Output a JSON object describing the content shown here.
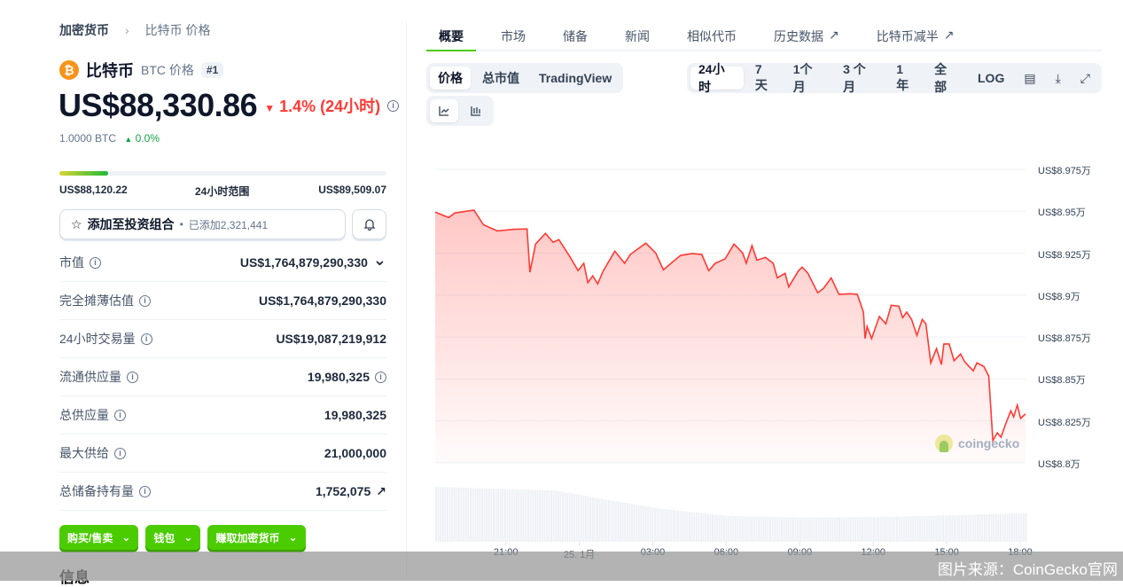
{
  "breadcrumb": {
    "root": "加密货币",
    "current": "比特币 价格"
  },
  "coin": {
    "name": "比特币",
    "symbol_label": "BTC 价格",
    "rank": "#1",
    "icon": "bitcoin-icon",
    "brand_color": "#f7931a"
  },
  "price": {
    "value": "US$88,330.86",
    "change": "1.4% (24小时)",
    "change_color": "#ff3a33",
    "btc_value": "1.0000 BTC",
    "btc_change": "0.0%",
    "btc_change_color": "#16a34a"
  },
  "range24h": {
    "low": "US$88,120.22",
    "label": "24小时范围",
    "high": "US$89,509.07",
    "position_percent": 15
  },
  "portfolio": {
    "label": "添加至投资组合",
    "added": "已添加2,321,441"
  },
  "stats": [
    {
      "label": "市值",
      "value": "US$1,764,879,290,330",
      "suffix_icon": "chevron-down-icon"
    },
    {
      "label": "完全摊薄估值",
      "value": "US$1,764,879,290,330"
    },
    {
      "label": "24小时交易量",
      "value": "US$19,087,219,912"
    },
    {
      "label": "流通供应量",
      "value": "19,980,325",
      "suffix_icon": "info-icon"
    },
    {
      "label": "总供应量",
      "value": "19,980,325"
    },
    {
      "label": "最大供给",
      "value": "21,000,000"
    },
    {
      "label": "总储备持有量",
      "value": "1,752,075",
      "suffix_icon": "external-link-icon"
    }
  ],
  "action_buttons": [
    "购买/售卖",
    "钱包",
    "赚取加密货币"
  ],
  "accent": "#4bcc00",
  "info_heading": "信息",
  "tabs": [
    {
      "label": "概要",
      "active": true
    },
    {
      "label": "市场"
    },
    {
      "label": "储备"
    },
    {
      "label": "新闻"
    },
    {
      "label": "相似代币"
    },
    {
      "label": "历史数据",
      "external": true
    },
    {
      "label": "比特币减半",
      "external": true
    }
  ],
  "chart_modes": [
    {
      "label": "价格",
      "active": true
    },
    {
      "label": "总市值"
    },
    {
      "label": "TradingView"
    }
  ],
  "ranges": [
    {
      "label": "24小时",
      "active": true
    },
    {
      "label": "7天"
    },
    {
      "label": "1个月"
    },
    {
      "label": "3 个月"
    },
    {
      "label": "1年"
    },
    {
      "label": "全部"
    },
    {
      "label": "LOG"
    }
  ],
  "range_icons": [
    "calendar-icon",
    "download-icon",
    "expand-icon"
  ],
  "chart_type_icons": [
    "line-chart-icon",
    "candlestick-chart-icon"
  ],
  "watermark": "coingecko",
  "credit": "图片来源：CoinGecko官网",
  "chart_data": {
    "type": "area",
    "line_color": "#ff3a33",
    "grid": true,
    "ylim": [
      88000,
      89750
    ],
    "y_ticks": [
      {
        "v": 89750,
        "label": "US$8.975万"
      },
      {
        "v": 89500,
        "label": "US$8.95万"
      },
      {
        "v": 89250,
        "label": "US$8.925万"
      },
      {
        "v": 89000,
        "label": "US$8.9万"
      },
      {
        "v": 88750,
        "label": "US$8.875万"
      },
      {
        "v": 88500,
        "label": "US$8.85万"
      },
      {
        "v": 88250,
        "label": "US$8.825万"
      },
      {
        "v": 88000,
        "label": "US$8.8万"
      }
    ],
    "x_ticks": [
      {
        "t": "01-24 21:00",
        "label": "21:00"
      },
      {
        "t": "01-25 00:00",
        "label": "25. 1月"
      },
      {
        "t": "01-25 03:00",
        "label": "03:00"
      },
      {
        "t": "01-25 06:00",
        "label": "06:00"
      },
      {
        "t": "01-25 09:00",
        "label": "09:00"
      },
      {
        "t": "01-25 12:00",
        "label": "12:00"
      },
      {
        "t": "01-25 15:00",
        "label": "15:00"
      },
      {
        "t": "01-25 18:00",
        "label": "18:00"
      }
    ],
    "xlim": [
      "01-24 18:07",
      "01-25 18:13"
    ],
    "points": [
      [
        "01-24 18:07",
        89495
      ],
      [
        "01-24 18:40",
        89463
      ],
      [
        "01-24 18:55",
        89490
      ],
      [
        "01-24 19:42",
        89507
      ],
      [
        "01-24 20:05",
        89420
      ],
      [
        "01-24 20:39",
        89383
      ],
      [
        "01-24 21:21",
        89393
      ],
      [
        "01-24 21:52",
        89395
      ],
      [
        "01-24 21:59",
        89137
      ],
      [
        "01-24 22:13",
        89305
      ],
      [
        "01-24 22:37",
        89368
      ],
      [
        "01-24 22:56",
        89315
      ],
      [
        "01-24 23:10",
        89331
      ],
      [
        "01-24 23:38",
        89225
      ],
      [
        "01-24 23:57",
        89146
      ],
      [
        "01-25 00:11",
        89190
      ],
      [
        "01-25 00:21",
        89075
      ],
      [
        "01-25 00:33",
        89115
      ],
      [
        "01-25 00:45",
        89067
      ],
      [
        "01-25 00:59",
        89146
      ],
      [
        "01-25 01:27",
        89262
      ],
      [
        "01-25 01:51",
        89190
      ],
      [
        "01-25 02:05",
        89243
      ],
      [
        "01-25 02:43",
        89310
      ],
      [
        "01-25 03:07",
        89252
      ],
      [
        "01-25 03:26",
        89151
      ],
      [
        "01-25 03:49",
        89199
      ],
      [
        "01-25 04:08",
        89237
      ],
      [
        "01-25 04:36",
        89248
      ],
      [
        "01-25 05:00",
        89243
      ],
      [
        "01-25 05:17",
        89146
      ],
      [
        "01-25 05:33",
        89190
      ],
      [
        "01-25 05:57",
        89216
      ],
      [
        "01-25 06:19",
        89305
      ],
      [
        "01-25 06:40",
        89252
      ],
      [
        "01-25 06:49",
        89190
      ],
      [
        "01-25 07:03",
        89295
      ],
      [
        "01-25 07:15",
        89208
      ],
      [
        "01-25 07:36",
        89225
      ],
      [
        "01-25 07:55",
        89190
      ],
      [
        "01-25 08:05",
        89103
      ],
      [
        "01-25 08:24",
        89130
      ],
      [
        "01-25 08:33",
        89049
      ],
      [
        "01-25 08:57",
        89146
      ],
      [
        "01-25 09:06",
        89167
      ],
      [
        "01-25 09:20",
        89130
      ],
      [
        "01-25 09:44",
        89014
      ],
      [
        "01-25 09:58",
        89040
      ],
      [
        "01-25 10:17",
        89103
      ],
      [
        "01-25 10:36",
        89005
      ],
      [
        "01-25 11:04",
        89008
      ],
      [
        "01-25 11:21",
        89005
      ],
      [
        "01-25 11:36",
        88899
      ],
      [
        "01-25 11:40",
        88741
      ],
      [
        "01-25 11:45",
        88813
      ],
      [
        "01-25 11:56",
        88741
      ],
      [
        "01-25 12:15",
        88873
      ],
      [
        "01-25 12:31",
        88829
      ],
      [
        "01-25 12:44",
        88940
      ],
      [
        "01-25 13:03",
        88934
      ],
      [
        "01-25 13:12",
        88865
      ],
      [
        "01-25 13:22",
        88899
      ],
      [
        "01-25 13:34",
        88855
      ],
      [
        "01-25 13:47",
        88760
      ],
      [
        "01-25 14:00",
        88855
      ],
      [
        "01-25 14:09",
        88829
      ],
      [
        "01-25 14:21",
        88596
      ],
      [
        "01-25 14:35",
        88681
      ],
      [
        "01-25 14:47",
        88586
      ],
      [
        "01-25 14:53",
        88709
      ],
      [
        "01-25 15:06",
        88709
      ],
      [
        "01-25 15:18",
        88609
      ],
      [
        "01-25 15:34",
        88649
      ],
      [
        "01-25 15:44",
        88603
      ],
      [
        "01-25 16:05",
        88549
      ],
      [
        "01-25 16:14",
        88596
      ],
      [
        "01-25 16:31",
        88575
      ],
      [
        "01-25 16:43",
        88517
      ],
      [
        "01-25 16:53",
        88133
      ],
      [
        "01-25 17:04",
        88179
      ],
      [
        "01-25 17:13",
        88153
      ],
      [
        "01-25 17:23",
        88222
      ],
      [
        "01-25 17:37",
        88311
      ],
      [
        "01-25 17:44",
        88274
      ],
      [
        "01-25 17:53",
        88344
      ],
      [
        "01-25 18:01",
        88265
      ],
      [
        "01-25 18:13",
        88292
      ]
    ],
    "volume_relative": [
      [
        "01-24 18:07",
        1.0
      ],
      [
        "01-24 23:00",
        0.93
      ],
      [
        "01-25 03:00",
        0.62
      ],
      [
        "01-25 06:00",
        0.47
      ],
      [
        "01-25 09:00",
        0.44
      ],
      [
        "01-25 12:00",
        0.45
      ],
      [
        "01-25 15:00",
        0.48
      ],
      [
        "01-25 18:13",
        0.52
      ]
    ]
  }
}
